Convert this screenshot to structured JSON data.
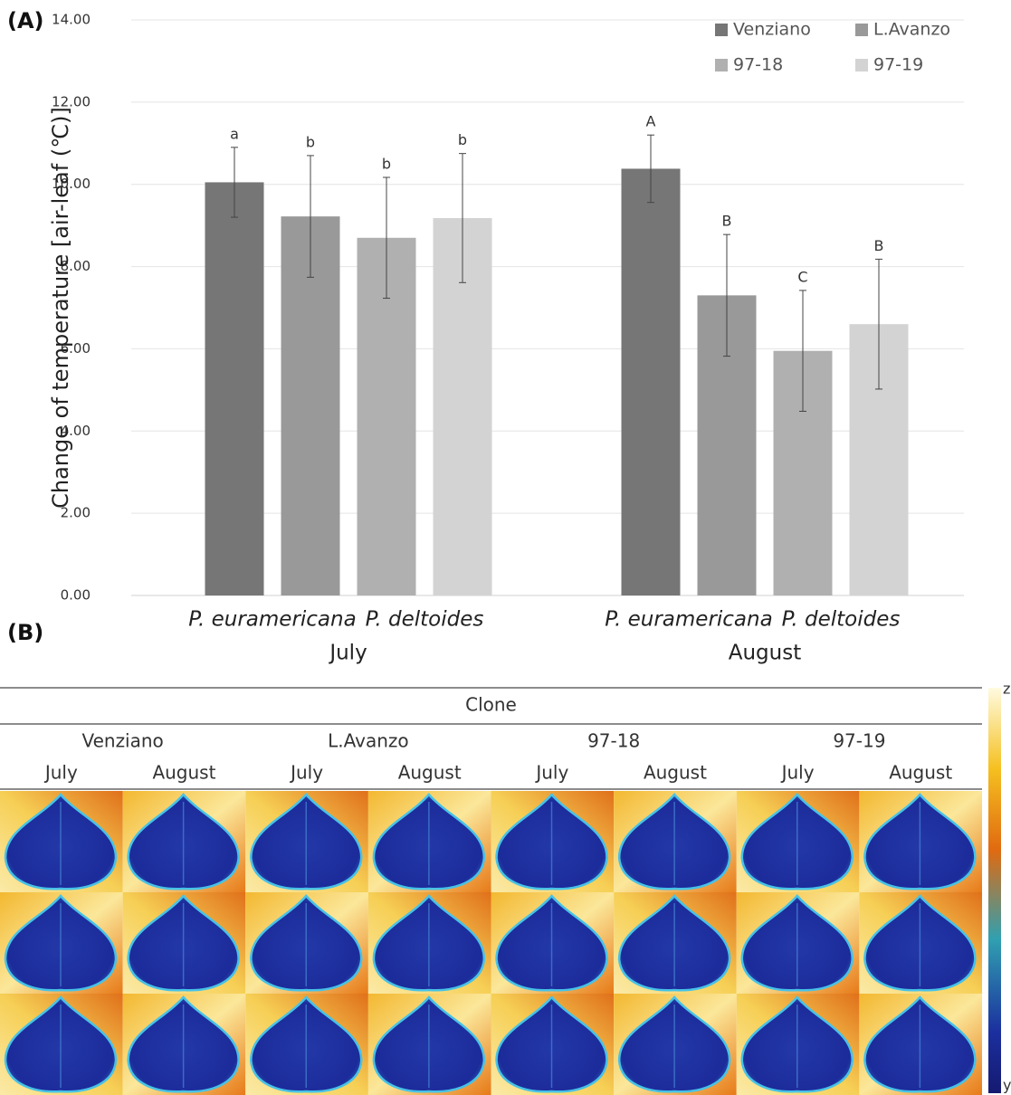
{
  "chart_data": {
    "type": "bar",
    "panel_label": "(A)",
    "ylabel": "Change of temperature [air-leaf (℃)]",
    "categories": [
      "July",
      "August"
    ],
    "species": [
      "P. euramericana",
      "P. deltoides"
    ],
    "ylim": [
      0,
      14
    ],
    "yticks": [
      {
        "value": 0,
        "label": "0.00"
      },
      {
        "value": 2,
        "label": "2.00"
      },
      {
        "value": 4,
        "label": "4.00"
      },
      {
        "value": 6,
        "label": "6.00"
      },
      {
        "value": 8,
        "label": "8.00"
      },
      {
        "value": 10,
        "label": "10.00"
      },
      {
        "value": 12,
        "label": "12.00"
      },
      {
        "value": 14,
        "label": "14.00"
      }
    ],
    "grid": true,
    "legend": "top-right",
    "series": [
      {
        "name": "Venziano",
        "color": "#767676",
        "values": [
          10.05,
          10.38
        ],
        "errors": [
          0.85,
          0.82
        ],
        "significance": [
          "a",
          "A"
        ]
      },
      {
        "name": "L.Avanzo",
        "color": "#999999",
        "values": [
          9.22,
          7.3
        ],
        "errors": [
          1.48,
          1.48
        ],
        "significance": [
          "b",
          "B"
        ]
      },
      {
        "name": "97-18",
        "color": "#b0b0b0",
        "values": [
          8.7,
          5.95
        ],
        "errors": [
          1.47,
          1.47
        ],
        "significance": [
          "b",
          "C"
        ]
      },
      {
        "name": "97-19",
        "color": "#d3d3d3",
        "values": [
          9.18,
          6.6
        ],
        "errors": [
          1.57,
          1.58
        ],
        "significance": [
          "b",
          "B"
        ]
      }
    ]
  },
  "thermal_panel": {
    "panel_label": "(B)",
    "header": "Clone",
    "clones": [
      "Venziano",
      "L.Avanzo",
      "97-18",
      "97-19"
    ],
    "months": [
      "July",
      "August"
    ],
    "colorbar": {
      "top": "z",
      "bottom": "y"
    }
  }
}
